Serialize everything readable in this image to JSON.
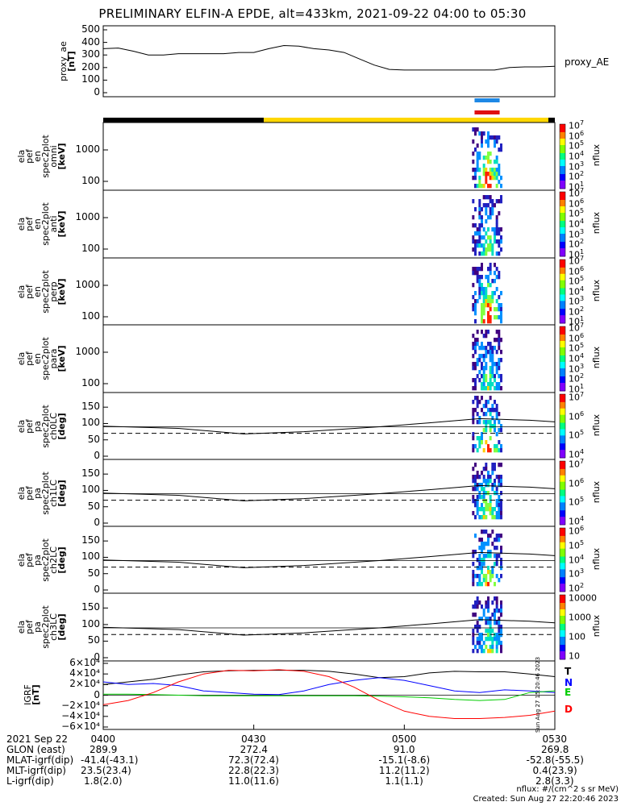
{
  "title": "PRELIMINARY ELFIN-A EPDE, alt=433km, 2021-09-22 04:00 to 05:30",
  "colors": {
    "blue_bar": "#1e88e5",
    "red_bar": "#e01010",
    "yellow": "#ffd700",
    "black": "#000000",
    "grf_T": "#000000",
    "grf_N": "#0000ff",
    "grf_E": "#00cc00",
    "grf_D": "#ff0000"
  },
  "top_panel": {
    "ylabel_lines": [
      "proxy_ae",
      "[nT]"
    ],
    "right_label": "proxy_AE",
    "ticks": [
      "500",
      "400",
      "300",
      "200",
      "100",
      "0"
    ]
  },
  "spec_panels": [
    {
      "ylabel_lines": [
        "ela",
        "pef",
        "en",
        "spec2plot",
        "omni",
        "[keV]"
      ],
      "ticks": [
        "1000",
        "100"
      ],
      "cb_ticks": [
        "10",
        "10",
        "10",
        "10",
        "10",
        "10",
        "10"
      ],
      "cb_exps": [
        "7",
        "6",
        "5",
        "4",
        "3",
        "2",
        "1"
      ],
      "cb_name": "nflux"
    },
    {
      "ylabel_lines": [
        "ela",
        "pef",
        "en",
        "spec2plot",
        "anti",
        "[keV]"
      ],
      "ticks": [
        "1000",
        "100"
      ],
      "cb_ticks": [
        "10",
        "10",
        "10",
        "10",
        "10",
        "10",
        "10"
      ],
      "cb_exps": [
        "7",
        "6",
        "5",
        "4",
        "3",
        "2",
        "1"
      ],
      "cb_name": "nflux"
    },
    {
      "ylabel_lines": [
        "ela",
        "pef",
        "en",
        "spec2plot",
        "perp",
        "[keV]"
      ],
      "ticks": [
        "1000",
        "100"
      ],
      "cb_ticks": [
        "10",
        "10",
        "10",
        "10",
        "10",
        "10",
        "10"
      ],
      "cb_exps": [
        "7",
        "6",
        "5",
        "4",
        "3",
        "2",
        "1"
      ],
      "cb_name": "nflux"
    },
    {
      "ylabel_lines": [
        "ela",
        "pef",
        "en",
        "spec2plot",
        "para",
        "[keV]"
      ],
      "ticks": [
        "1000",
        "100"
      ],
      "cb_ticks": [
        "10",
        "10",
        "10",
        "10",
        "10",
        "10",
        "10"
      ],
      "cb_exps": [
        "7",
        "6",
        "5",
        "4",
        "3",
        "2",
        "1"
      ],
      "cb_name": "nflux"
    }
  ],
  "pa_panels": [
    {
      "ylabel_lines": [
        "ela",
        "pef",
        "pa",
        "spec2plot",
        "ch0LC",
        "[deg]"
      ],
      "ticks": [
        "150",
        "100",
        "50",
        "0"
      ],
      "cb_ticks": [
        "10",
        "10",
        "10",
        "10"
      ],
      "cb_exps": [
        "7",
        "6",
        "5",
        "4"
      ],
      "cb_name": "nflux"
    },
    {
      "ylabel_lines": [
        "ela",
        "pef",
        "pa",
        "spec2plot",
        "ch1LC",
        "[deg]"
      ],
      "ticks": [
        "150",
        "100",
        "50",
        "0"
      ],
      "cb_ticks": [
        "10",
        "10",
        "10",
        "10"
      ],
      "cb_exps": [
        "7",
        "6",
        "5",
        "4"
      ],
      "cb_name": "nflux"
    },
    {
      "ylabel_lines": [
        "ela",
        "pef",
        "pa",
        "spec2plot",
        "ch2LC",
        "[deg]"
      ],
      "ticks": [
        "150",
        "100",
        "50",
        "0"
      ],
      "cb_ticks": [
        "10",
        "10",
        "10",
        "10",
        "10"
      ],
      "cb_exps": [
        "6",
        "5",
        "4",
        "3",
        "2"
      ],
      "cb_name": "nflux"
    },
    {
      "ylabel_lines": [
        "ela",
        "pef",
        "pa",
        "spec2plot",
        "ch3LC",
        "[deg]"
      ],
      "ticks": [
        "150",
        "100",
        "50",
        "0"
      ],
      "cb_ticks": [
        "10000",
        "1000",
        "100",
        "10"
      ],
      "cb_exps": [
        "",
        "",
        "",
        ""
      ],
      "cb_name": "nflux"
    }
  ],
  "grf_panel": {
    "ylabel_lines": [
      "IGRF",
      "[nT]"
    ],
    "ticks": [
      "6×10⁴",
      "4×10⁴",
      "2×10⁴",
      "0",
      "−2×10⁴",
      "−4×10⁴",
      "−6×10⁴"
    ],
    "components": [
      "T",
      "N",
      "E",
      "D"
    ],
    "stamp": "Sun Aug 27 15:20:46 2023"
  },
  "footer": {
    "rows": [
      {
        "label": "2021 Sep 22",
        "vals": [
          "0400",
          "0430",
          "0500",
          "0530"
        ]
      },
      {
        "label": "GLON (east)",
        "vals": [
          "289.9",
          "272.4",
          "91.0",
          "269.8"
        ]
      },
      {
        "label": "MLAT-igrf(dip)",
        "vals": [
          "-41.4(-43.1)",
          "72.3(72.4)",
          "-15.1(-8.6)",
          "-52.8(-55.5)"
        ]
      },
      {
        "label": "MLT-igrf(dip)",
        "vals": [
          "23.5(23.4)",
          "22.8(22.3)",
          "11.2(11.2)",
          "0.4(23.9)"
        ]
      },
      {
        "label": "L-igrf(dip)",
        "vals": [
          "1.8(2.0)",
          "11.0(11.6)",
          "1.1(1.1)",
          "2.8(3.3)"
        ]
      }
    ],
    "note1": "nflux: #/(cm^2 s sr MeV)",
    "note2": "Created: Sun Aug 27 22:20:46 2023"
  },
  "chart_data": {
    "type": "line",
    "time_range_ut": [
      "04:00",
      "05:30"
    ],
    "x_ticks": [
      "0400",
      "0430",
      "0500",
      "0530"
    ],
    "proxy_ae": {
      "ylim": [
        0,
        500
      ],
      "x_min": [
        0,
        3,
        6,
        9,
        12,
        15,
        18,
        21,
        24,
        27,
        30,
        33,
        36,
        39,
        42,
        45,
        48,
        51,
        54,
        57,
        60,
        63,
        66,
        69,
        72,
        75,
        78,
        81,
        84,
        87,
        90
      ],
      "values": [
        350,
        355,
        330,
        300,
        300,
        310,
        310,
        310,
        310,
        320,
        320,
        350,
        375,
        370,
        350,
        340,
        320,
        270,
        220,
        185,
        180,
        180,
        180,
        180,
        180,
        180,
        180,
        200,
        205,
        205,
        210
      ]
    },
    "science_zone_bars": {
      "blue": [
        74,
        79
      ],
      "red": [
        74,
        79
      ]
    },
    "orbit_bar": {
      "black": [
        0,
        32
      ],
      "yellow": [
        32,
        90
      ]
    },
    "pa_lines": {
      "x_min": [
        0,
        15,
        28,
        40,
        55,
        65,
        75,
        85,
        90
      ],
      "solid": [
        92,
        85,
        68,
        75,
        90,
        102,
        115,
        110,
        105
      ],
      "dashed_lc": [
        70,
        70,
        70,
        70,
        70,
        70,
        70,
        70,
        70
      ]
    },
    "igrf": {
      "ylim": [
        -60000,
        60000
      ],
      "x_min": [
        0,
        5,
        10,
        15,
        20,
        25,
        30,
        35,
        40,
        45,
        50,
        55,
        60,
        65,
        70,
        75,
        80,
        85,
        90
      ],
      "T": [
        20000,
        25000,
        30000,
        38000,
        44000,
        46000,
        47000,
        47000,
        47000,
        45000,
        40000,
        33000,
        35000,
        42000,
        45000,
        44000,
        44000,
        40000,
        35000
      ],
      "N": [
        25000,
        20000,
        22000,
        18000,
        8000,
        5000,
        2000,
        1000,
        8000,
        20000,
        28000,
        33000,
        28000,
        18000,
        8000,
        5000,
        10000,
        8000,
        5000
      ],
      "E": [
        2000,
        2000,
        1000,
        0,
        -1000,
        -1000,
        -1000,
        -1000,
        -1000,
        -1000,
        -1000,
        -2000,
        -3000,
        -5000,
        -8000,
        -10000,
        -8000,
        5000,
        8000
      ],
      "D": [
        -18000,
        -10000,
        5000,
        25000,
        40000,
        47000,
        46000,
        48000,
        45000,
        35000,
        15000,
        -10000,
        -30000,
        -40000,
        -44000,
        -44000,
        -42000,
        -38000,
        -30000
      ]
    }
  }
}
